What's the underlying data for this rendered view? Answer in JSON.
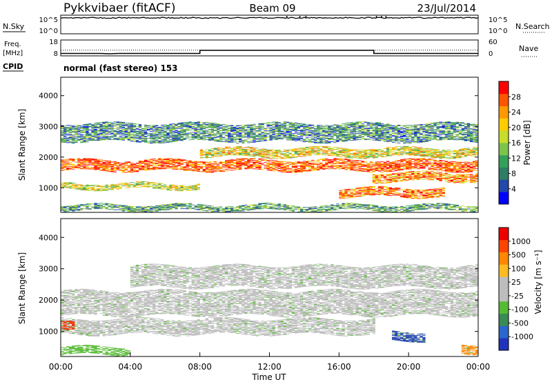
{
  "header": {
    "station": "Pykkvibaer (fitACF)",
    "beam": "Beam 09",
    "date": "23/Jul/2014"
  },
  "side_labels": {
    "nsky": "N.Sky",
    "nsearch": "N.Search",
    "freq_line1": "Freq.",
    "freq_line2": "[MHz]",
    "nave": "Nave",
    "cpid": "CPID"
  },
  "cpid_text": "normal (fast stereo) 153",
  "chart_data": [
    {
      "type": "line",
      "name": "noise",
      "x_range_hours": [
        0,
        24
      ],
      "y_ticks_left": [
        "10^5",
        "10^0"
      ],
      "y_ticks_right": [
        "10^5",
        "10^0"
      ],
      "series": [
        {
          "name": "N.Sky",
          "style": "solid",
          "level_log10": 4.6,
          "spikes_hours": [
            13.0,
            13.75,
            14.1,
            18.15,
            18.45,
            18.7
          ]
        },
        {
          "name": "N.Search",
          "style": "dotted",
          "level_log10": 4.5
        }
      ]
    },
    {
      "type": "line",
      "name": "frequency-nave",
      "x_range_hours": [
        0,
        24
      ],
      "y_ticks_left": [
        "18",
        "8"
      ],
      "y_ticks_right": [
        "60",
        "0"
      ],
      "series": [
        {
          "name": "Freq",
          "style": "solid",
          "points": [
            [
              0,
              9.5
            ],
            [
              2.3,
              9.5
            ],
            [
              2.8,
              9.3
            ],
            [
              3.3,
              9.5
            ],
            [
              8.0,
              9.5
            ],
            [
              8.0,
              11.5
            ],
            [
              18.0,
              11.5
            ],
            [
              18.0,
              9.5
            ],
            [
              24,
              9.5
            ]
          ]
        },
        {
          "name": "Nave",
          "style": "dotted",
          "points": [
            [
              0,
              11.6
            ],
            [
              24,
              11.6
            ]
          ]
        }
      ]
    },
    {
      "type": "heatmap",
      "name": "power",
      "ylabel": "Slant Range [km]",
      "ylim": [
        200,
        4600
      ],
      "y_ticks": [
        1000,
        2000,
        3000,
        4000
      ],
      "colorbar_label": "Power [dB]",
      "colorbar_ticks": [
        "28",
        "24",
        "20",
        "16",
        "12",
        "8",
        "4"
      ],
      "colorbar_colors": [
        "#0000ff",
        "#2248a8",
        "#2e7d64",
        "#33a05a",
        "#7cc44a",
        "#c8dc2a",
        "#ffcc00",
        "#ff9900",
        "#ff5500",
        "#ff0000"
      ],
      "bands": [
        {
          "range": [
            1550,
            1900
          ],
          "start": 0,
          "end": 24,
          "level": 0.85
        },
        {
          "range": [
            2000,
            2300
          ],
          "start": 8,
          "end": 24,
          "level": 0.6
        },
        {
          "range": [
            950,
            1150
          ],
          "start": 0,
          "end": 8,
          "level": 0.55
        },
        {
          "range": [
            700,
            1000
          ],
          "start": 16,
          "end": 22,
          "level": 0.8
        },
        {
          "range": [
            2500,
            3100
          ],
          "start": 0,
          "end": 24,
          "level": 0.3
        },
        {
          "range": [
            250,
            450
          ],
          "start": 0,
          "end": 24,
          "level": 0.35
        },
        {
          "range": [
            1200,
            1500
          ],
          "start": 18,
          "end": 24,
          "level": 0.75
        }
      ]
    },
    {
      "type": "heatmap",
      "name": "velocity",
      "xlabel": "Time UT",
      "ylabel": "Slant Range [km]",
      "xlim": [
        0,
        24
      ],
      "x_ticks": [
        "00:00",
        "04:00",
        "08:00",
        "12:00",
        "16:00",
        "20:00",
        "00:00"
      ],
      "ylim": [
        200,
        4600
      ],
      "y_ticks": [
        1000,
        2000,
        3000,
        4000
      ],
      "colorbar_label": "Velocity [m s⁻¹]",
      "colorbar_ticks": [
        "1000",
        "500",
        "100",
        "25",
        "-25",
        "-100",
        "-500",
        "-1000"
      ],
      "colorbar_colors": [
        "#2233bb",
        "#2a66cc",
        "#3a8a55",
        "#55bb33",
        "#bdbdbd",
        "#bdbdbd",
        "#ffbb22",
        "#ff8800",
        "#ff4400",
        "#ee0000"
      ],
      "bands": [
        {
          "range": [
            1500,
            2300
          ],
          "start": 0,
          "end": 24,
          "color": "#bdbdbd"
        },
        {
          "range": [
            2400,
            3100
          ],
          "start": 4,
          "end": 24,
          "color": "#bdbdbd"
        },
        {
          "range": [
            900,
            1400
          ],
          "start": 0,
          "end": 18,
          "color": "#bdbdbd"
        },
        {
          "range": [
            700,
            1000
          ],
          "start": 19,
          "end": 21,
          "color": "#2244aa"
        },
        {
          "range": [
            1100,
            1400
          ],
          "start": 0,
          "end": 0.8,
          "color": "#ee3300"
        },
        {
          "range": [
            300,
            600
          ],
          "start": 23,
          "end": 24,
          "color": "#ff8800"
        },
        {
          "range": [
            250,
            500
          ],
          "start": 0,
          "end": 4,
          "color": "#55bb33"
        }
      ]
    }
  ]
}
